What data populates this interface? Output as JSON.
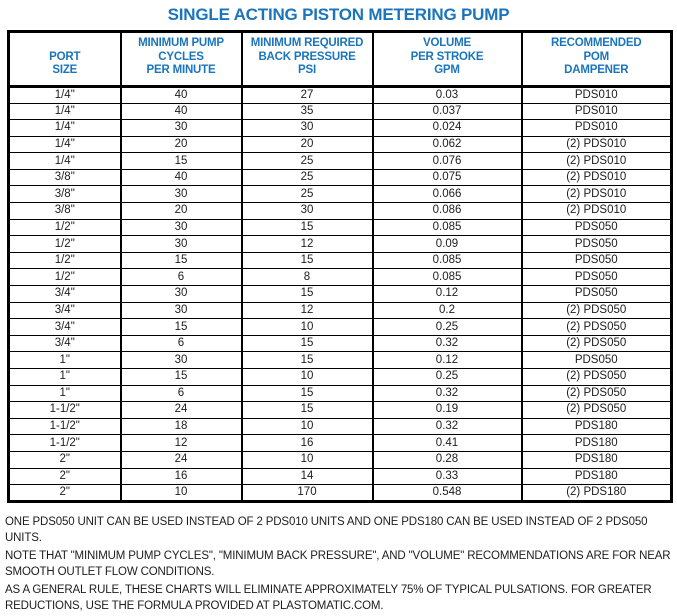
{
  "title": "SINGLE ACTING PISTON METERING PUMP",
  "colors": {
    "accent_blue": "#1B75BC",
    "text": "#1D1D1F",
    "border": "#000000",
    "background": "#FFFFFF"
  },
  "table": {
    "headers": [
      {
        "lines": [
          "PORT",
          "SIZE"
        ]
      },
      {
        "lines": [
          "MINIMUM PUMP",
          "CYCLES",
          "PER MINUTE"
        ]
      },
      {
        "lines": [
          "MINIMUM REQUIRED",
          "BACK PRESSURE",
          "PSI"
        ]
      },
      {
        "lines": [
          "VOLUME",
          "PER STROKE",
          "GPM"
        ]
      },
      {
        "lines": [
          "RECOMMENDED",
          "POM",
          "DAMPENER"
        ]
      }
    ],
    "rows": [
      [
        "1/4\"",
        "40",
        "27",
        "0.03",
        "PDS010"
      ],
      [
        "1/4\"",
        "40",
        "35",
        "0.037",
        "PDS010"
      ],
      [
        "1/4\"",
        "30",
        "30",
        "0.024",
        "PDS010"
      ],
      [
        "1/4\"",
        "20",
        "20",
        "0.062",
        "(2) PDS010"
      ],
      [
        "1/4\"",
        "15",
        "25",
        "0.076",
        "(2) PDS010"
      ],
      [
        "3/8\"",
        "40",
        "25",
        "0.075",
        "(2) PDS010"
      ],
      [
        "3/8\"",
        "30",
        "25",
        "0.066",
        "(2) PDS010"
      ],
      [
        "3/8\"",
        "20",
        "30",
        "0.086",
        "(2) PDS010"
      ],
      [
        "1/2\"",
        "30",
        "15",
        "0.085",
        "PDS050"
      ],
      [
        "1/2\"",
        "30",
        "12",
        "0.09",
        "PDS050"
      ],
      [
        "1/2\"",
        "15",
        "15",
        "0.085",
        "PDS050"
      ],
      [
        "1/2\"",
        "6",
        "8",
        "0.085",
        "PDS050"
      ],
      [
        "3/4\"",
        "30",
        "15",
        "0.12",
        "PDS050"
      ],
      [
        "3/4\"",
        "30",
        "12",
        "0.2",
        "(2) PDS050"
      ],
      [
        "3/4\"",
        "15",
        "10",
        "0.25",
        "(2) PDS050"
      ],
      [
        "3/4\"",
        "6",
        "15",
        "0.32",
        "(2) PDS050"
      ],
      [
        "1\"",
        "30",
        "15",
        "0.12",
        "PDS050"
      ],
      [
        "1\"",
        "15",
        "10",
        "0.25",
        "(2) PDS050"
      ],
      [
        "1\"",
        "6",
        "15",
        "0.32",
        "(2) PDS050"
      ],
      [
        "1-1/2\"",
        "24",
        "15",
        "0.19",
        "(2) PDS050"
      ],
      [
        "1-1/2\"",
        "18",
        "10",
        "0.32",
        "PDS180"
      ],
      [
        "1-1/2\"",
        "12",
        "16",
        "0.41",
        "PDS180"
      ],
      [
        "2\"",
        "24",
        "10",
        "0.28",
        "PDS180"
      ],
      [
        "2\"",
        "16",
        "14",
        "0.33",
        "PDS180"
      ],
      [
        "2\"",
        "10",
        "170",
        "0.548",
        "(2) PDS180"
      ]
    ]
  },
  "notes": [
    "ONE PDS050 UNIT CAN BE USED INSTEAD OF 2 PDS010 UNITS AND ONE PDS180 CAN BE USED INSTEAD OF 2 PDS050 UNITS.",
    "NOTE THAT \"MINIMUM PUMP CYCLES\", \"MINIMUM BACK PRESSURE\", AND \"VOLUME\" RECOMMENDATIONS ARE FOR NEAR SMOOTH OUTLET FLOW CONDITIONS.",
    "AS A GENERAL RULE, THESE CHARTS WILL ELIMINATE APPROXIMATELY 75% OF TYPICAL PULSATIONS. FOR GREATER REDUCTIONS, USE THE FORMULA PROVIDED AT PLASTOMATIC.COM."
  ]
}
